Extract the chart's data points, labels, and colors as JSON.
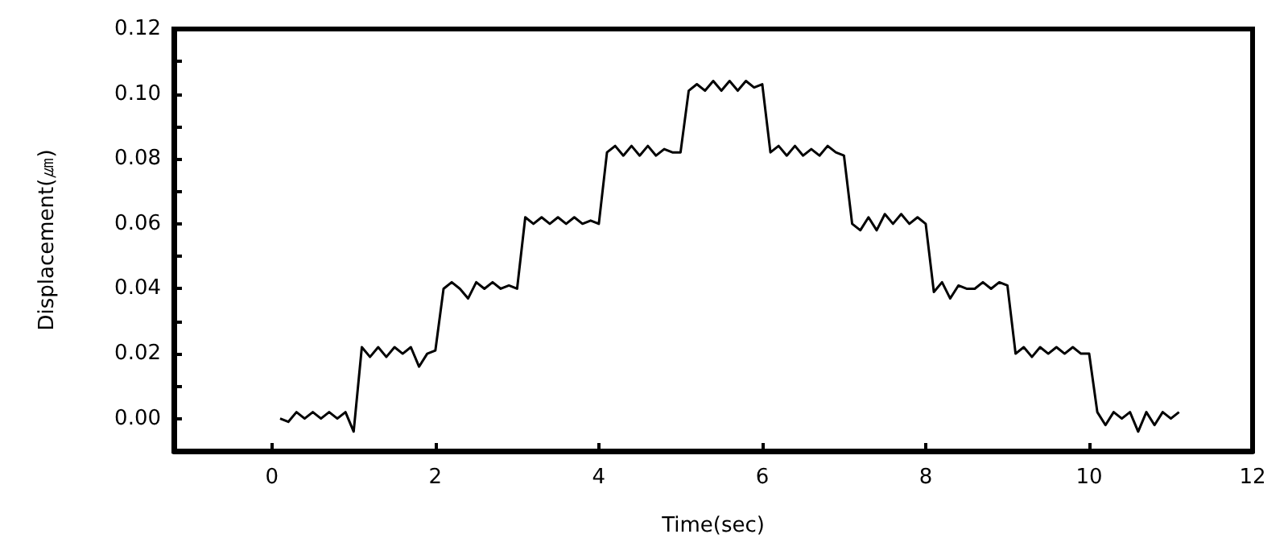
{
  "chart_data": {
    "type": "line",
    "xlabel": "Time(sec)",
    "ylabel": "Displacement(㎛)",
    "x": [
      0.1,
      0.2,
      0.3,
      0.4,
      0.5,
      0.6,
      0.7,
      0.8,
      0.9,
      1.0,
      1.1,
      1.2,
      1.3,
      1.4,
      1.5,
      1.6,
      1.7,
      1.8,
      1.9,
      2.0,
      2.1,
      2.2,
      2.3,
      2.4,
      2.5,
      2.6,
      2.7,
      2.8,
      2.9,
      3.0,
      3.1,
      3.2,
      3.3,
      3.4,
      3.5,
      3.6,
      3.7,
      3.8,
      3.9,
      4.0,
      4.1,
      4.2,
      4.3,
      4.4,
      4.5,
      4.6,
      4.7,
      4.8,
      4.9,
      5.0,
      5.1,
      5.2,
      5.3,
      5.4,
      5.5,
      5.6,
      5.7,
      5.8,
      5.9,
      6.0,
      6.1,
      6.2,
      6.3,
      6.4,
      6.5,
      6.6,
      6.7,
      6.8,
      6.9,
      7.0,
      7.1,
      7.2,
      7.3,
      7.4,
      7.5,
      7.6,
      7.7,
      7.8,
      7.9,
      8.0,
      8.1,
      8.2,
      8.3,
      8.4,
      8.5,
      8.6,
      8.7,
      8.8,
      8.9,
      9.0,
      9.1,
      9.2,
      9.3,
      9.4,
      9.5,
      9.6,
      9.7,
      9.8,
      9.9,
      10.0,
      10.1,
      10.2,
      10.3,
      10.4,
      10.5,
      10.6,
      10.7,
      10.8,
      10.9,
      11.0,
      11.1
    ],
    "series": [
      {
        "color": "#000000",
        "values": [
          0,
          -0.001,
          0.002,
          0,
          0.002,
          0,
          0.002,
          0,
          0.002,
          -0.004,
          0.022,
          0.019,
          0.022,
          0.019,
          0.022,
          0.02,
          0.022,
          0.016,
          0.02,
          0.021,
          0.04,
          0.042,
          0.04,
          0.037,
          0.042,
          0.04,
          0.042,
          0.04,
          0.041,
          0.04,
          0.062,
          0.06,
          0.062,
          0.06,
          0.062,
          0.06,
          0.062,
          0.06,
          0.061,
          0.06,
          0.082,
          0.084,
          0.081,
          0.084,
          0.081,
          0.084,
          0.081,
          0.083,
          0.082,
          0.082,
          0.101,
          0.103,
          0.101,
          0.104,
          0.101,
          0.104,
          0.101,
          0.104,
          0.102,
          0.103,
          0.082,
          0.084,
          0.081,
          0.084,
          0.081,
          0.083,
          0.081,
          0.084,
          0.082,
          0.081,
          0.06,
          0.058,
          0.062,
          0.058,
          0.063,
          0.06,
          0.063,
          0.06,
          0.062,
          0.06,
          0.039,
          0.042,
          0.037,
          0.041,
          0.04,
          0.04,
          0.042,
          0.04,
          0.042,
          0.041,
          0.02,
          0.022,
          0.019,
          0.022,
          0.02,
          0.022,
          0.02,
          0.022,
          0.02,
          0.02,
          0.002,
          -0.002,
          0.002,
          0,
          0.002,
          -0.004,
          0.002,
          -0.002,
          0.002,
          0,
          0.002
        ]
      }
    ],
    "xlim": [
      -1.2,
      12
    ],
    "xticks": [
      0,
      2,
      4,
      6,
      8,
      10,
      12
    ],
    "ylim": [
      -0.01,
      0.12
    ],
    "yticks": [
      {
        "value": 0,
        "label": "0.00"
      },
      {
        "value": 0.01,
        "label": null
      },
      {
        "value": 0.02,
        "label": "0.02"
      },
      {
        "value": 0.03,
        "label": null
      },
      {
        "value": 0.04,
        "label": "0.04"
      },
      {
        "value": 0.05,
        "label": null
      },
      {
        "value": 0.06,
        "label": "0.06"
      },
      {
        "value": 0.07,
        "label": null
      },
      {
        "value": 0.08,
        "label": "0.08"
      },
      {
        "value": 0.09,
        "label": null
      },
      {
        "value": 0.1,
        "label": "0.10"
      },
      {
        "value": 0.11,
        "label": null
      },
      {
        "value": 0.12,
        "label": "0.12"
      }
    ],
    "grid": false,
    "marker": "none",
    "line_style": "solid"
  }
}
